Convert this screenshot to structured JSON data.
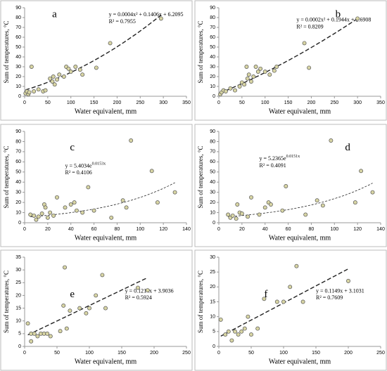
{
  "chart_data": [
    {
      "type": "scatter",
      "panel_label": "a",
      "x_label": "Water equivalent, mm",
      "y_label": "Sum of temperatures, °C",
      "color": "#d8d5a4",
      "x": [
        2,
        5,
        8,
        10,
        15,
        20,
        30,
        40,
        45,
        55,
        60,
        62,
        65,
        70,
        75,
        85,
        90,
        95,
        100,
        110,
        120,
        125,
        155,
        185,
        295
      ],
      "y": [
        3,
        5,
        2,
        4,
        30,
        5,
        7,
        5,
        6,
        18,
        15,
        20,
        12,
        17,
        22,
        20,
        30,
        28,
        25,
        30,
        27,
        22,
        29,
        54,
        79
      ],
      "xlim": [
        0,
        350
      ],
      "xticks": [
        0,
        50,
        100,
        150,
        200,
        250,
        300,
        350
      ],
      "ylim": [
        0,
        90
      ],
      "yticks": [
        0,
        10,
        20,
        30,
        40,
        50,
        60,
        70,
        80,
        90
      ],
      "trendline": {
        "kind": "poly2",
        "coefficients": [
          0.0004,
          0.1406,
          6.2095
        ],
        "equation": "y = 0.0004x² + 0.1406x + 6.2095",
        "r_squared": "R² = 0.7955"
      }
    },
    {
      "type": "scatter",
      "panel_label": "b",
      "x_label": "Water equivalent, mm",
      "y_label": "Sum of temperatures, °C",
      "color": "#d8d5a4",
      "x": [
        3,
        6,
        10,
        15,
        25,
        35,
        45,
        50,
        55,
        60,
        62,
        65,
        70,
        75,
        80,
        85,
        90,
        100,
        110,
        120,
        125,
        185,
        195,
        300
      ],
      "y": [
        2,
        4,
        6,
        5,
        8,
        6,
        10,
        14,
        12,
        30,
        18,
        22,
        15,
        20,
        30,
        25,
        28,
        25,
        22,
        26,
        30,
        54,
        29,
        79
      ],
      "xlim": [
        0,
        350
      ],
      "xticks": [
        0,
        50,
        100,
        150,
        200,
        250,
        300,
        350
      ],
      "ylim": [
        0,
        90
      ],
      "yticks": [
        0,
        10,
        20,
        30,
        40,
        50,
        60,
        70,
        80,
        90
      ],
      "trendline": {
        "kind": "poly2",
        "coefficients": [
          0.0002,
          0.1944,
          2.6908
        ],
        "equation": "y = 0.0002x² + 0.1944x + 2.6908",
        "r_squared": "R² = 0.8209"
      }
    },
    {
      "type": "scatter",
      "panel_label": "c",
      "x_label": "Water equivalent, mm",
      "y_label": "Sum of temperatures, °C",
      "color": "#d8d5a4",
      "x": [
        5,
        8,
        10,
        12,
        15,
        17,
        18,
        20,
        22,
        25,
        28,
        35,
        40,
        43,
        45,
        50,
        55,
        60,
        75,
        85,
        88,
        92,
        110,
        115,
        130
      ],
      "y": [
        8,
        7,
        3,
        6,
        9,
        18,
        15,
        5,
        10,
        7,
        25,
        15,
        18,
        20,
        12,
        10,
        35,
        12,
        5,
        22,
        15,
        81,
        51,
        20,
        30
      ],
      "xlim": [
        0,
        140
      ],
      "xticks": [
        0,
        20,
        40,
        60,
        80,
        100,
        120,
        140
      ],
      "ylim": [
        0,
        90
      ],
      "yticks": [
        0,
        10,
        20,
        30,
        40,
        50,
        60,
        70,
        80,
        90
      ],
      "trendline": {
        "kind": "exp",
        "coefficients": [
          5.4034,
          0.0153
        ],
        "equation": "y = 5.4034e",
        "equation_exponent": "0.0153x",
        "r_squared": "R² = 0.4106"
      }
    },
    {
      "type": "scatter",
      "panel_label": "d",
      "x_label": "Water equivalent, mm",
      "y_label": "Sum of temperatures, °C",
      "color": "#d8d5a4",
      "x": [
        8,
        10,
        12,
        15,
        16,
        18,
        20,
        25,
        28,
        35,
        40,
        43,
        45,
        55,
        58,
        75,
        85,
        90,
        97,
        118,
        123,
        133
      ],
      "y": [
        8,
        5,
        7,
        4,
        18,
        10,
        9,
        6,
        25,
        8,
        15,
        20,
        18,
        12,
        36,
        8,
        22,
        17,
        81,
        20,
        51,
        30
      ],
      "xlim": [
        0,
        140
      ],
      "xticks": [
        0,
        20,
        40,
        60,
        80,
        100,
        120,
        140
      ],
      "ylim": [
        0,
        90
      ],
      "yticks": [
        0,
        10,
        20,
        30,
        40,
        50,
        60,
        70,
        80,
        90
      ],
      "trendline": {
        "kind": "exp",
        "coefficients": [
          5.2365,
          0.0151
        ],
        "equation": "y = 5.2365e",
        "equation_exponent": "0.0151x",
        "r_squared": "R² = 0.4091"
      }
    },
    {
      "type": "scatter",
      "panel_label": "e",
      "x_label": "Water equivalent, mm",
      "y_label": "Sum of temperatures, °C",
      "color": "#d8d5a4",
      "x": [
        5,
        10,
        10,
        15,
        20,
        25,
        30,
        35,
        40,
        55,
        60,
        62,
        65,
        70,
        85,
        95,
        100,
        110,
        120,
        125,
        175,
        190
      ],
      "y": [
        9,
        2,
        5,
        5,
        4,
        5,
        5,
        5,
        4,
        6,
        16,
        31,
        7,
        14,
        15,
        13,
        15,
        20,
        28,
        15,
        23,
        22
      ],
      "xlim": [
        0,
        250
      ],
      "xticks": [
        0,
        50,
        100,
        150,
        200,
        250
      ],
      "ylim": [
        0,
        35
      ],
      "yticks": [
        0,
        5,
        10,
        15,
        20,
        25,
        30,
        35
      ],
      "trendline": {
        "kind": "linear",
        "coefficients": [
          0.1214,
          3.9036
        ],
        "equation": "y = 0.1214x + 3.9036",
        "r_squared": "R² = 0.5924"
      }
    },
    {
      "type": "scatter",
      "panel_label": "f",
      "x_label": "Water equivalent, mm",
      "y_label": "Sum of temperatures, °C",
      "color": "#d8d5a4",
      "x": [
        3,
        10,
        15,
        20,
        25,
        30,
        35,
        40,
        45,
        50,
        60,
        70,
        90,
        100,
        110,
        120,
        130,
        200
      ],
      "y": [
        9,
        4,
        5,
        2,
        5,
        4,
        5,
        6,
        10,
        4,
        6,
        16,
        15,
        15,
        20,
        27,
        15,
        22
      ],
      "xlim": [
        0,
        250
      ],
      "xticks": [
        0,
        50,
        100,
        150,
        200,
        250
      ],
      "ylim": [
        0,
        30
      ],
      "yticks": [
        0,
        5,
        10,
        15,
        20,
        25,
        30
      ],
      "trendline": {
        "kind": "linear",
        "coefficients": [
          0.1149,
          3.1031
        ],
        "equation": "y = 0.1149x + 3.1031",
        "r_squared": "R² = 0.7609"
      }
    }
  ]
}
